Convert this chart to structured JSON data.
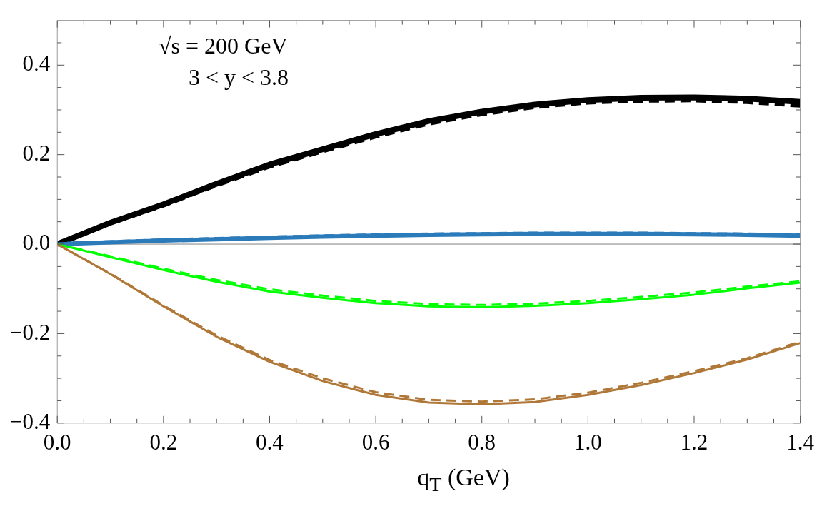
{
  "chart_data": {
    "type": "line",
    "xlabel": "q$_{T}$ (GeV)",
    "x": [
      0,
      0.1,
      0.2,
      0.3,
      0.4,
      0.5,
      0.6,
      0.7,
      0.8,
      0.9,
      1.0,
      1.1,
      1.2,
      1.3,
      1.4
    ],
    "series": [
      {
        "color": "#000000",
        "line_style": "solid",
        "values": [
          0,
          0.048,
          0.089,
          0.135,
          0.178,
          0.212,
          0.246,
          0.275,
          0.296,
          0.312,
          0.322,
          0.327,
          0.328,
          0.325,
          0.318
        ]
      },
      {
        "color": "#2b7bba",
        "line_style": "solid",
        "values": [
          0,
          0.004,
          0.008,
          0.011,
          0.014,
          0.017,
          0.019,
          0.021,
          0.022,
          0.023,
          0.023,
          0.023,
          0.022,
          0.021,
          0.019
        ]
      },
      {
        "color": "#00ff00",
        "line_style": "solid",
        "values": [
          0,
          -0.029,
          -0.058,
          -0.084,
          -0.106,
          -0.12,
          -0.132,
          -0.139,
          -0.141,
          -0.138,
          -0.132,
          -0.123,
          -0.113,
          -0.099,
          -0.086
        ]
      },
      {
        "color": "#b07838",
        "line_style": "solid",
        "values": [
          0,
          -0.067,
          -0.139,
          -0.207,
          -0.263,
          -0.306,
          -0.337,
          -0.354,
          -0.358,
          -0.353,
          -0.337,
          -0.315,
          -0.288,
          -0.258,
          -0.221
        ]
      },
      {
        "color": "#000000",
        "line_style": "dashed",
        "values": [
          0,
          0.046,
          0.086,
          0.131,
          0.173,
          0.207,
          0.24,
          0.269,
          0.29,
          0.306,
          0.316,
          0.32,
          0.321,
          0.317,
          0.309
        ]
      },
      {
        "color": "#2b7bba",
        "line_style": "dashed",
        "values": [
          0,
          0.005,
          0.009,
          0.012,
          0.015,
          0.018,
          0.02,
          0.022,
          0.023,
          0.024,
          0.024,
          0.024,
          0.023,
          0.022,
          0.02
        ]
      },
      {
        "color": "#00ff00",
        "line_style": "dashed",
        "values": [
          0,
          -0.027,
          -0.055,
          -0.08,
          -0.101,
          -0.115,
          -0.127,
          -0.134,
          -0.136,
          -0.133,
          -0.127,
          -0.118,
          -0.108,
          -0.095,
          -0.083
        ]
      },
      {
        "color": "#b07838",
        "line_style": "dashed",
        "values": [
          0,
          -0.066,
          -0.137,
          -0.204,
          -0.259,
          -0.3,
          -0.331,
          -0.348,
          -0.352,
          -0.347,
          -0.332,
          -0.31,
          -0.284,
          -0.255,
          -0.218
        ]
      }
    ],
    "xlim": [
      0,
      1.4
    ],
    "xticks": [
      {
        "value": 0,
        "label": "0.0"
      },
      {
        "value": 0.05,
        "label": null
      },
      0.2,
      {
        "value": 0.1,
        "label": null
      },
      {
        "value": 0.15,
        "label": null
      },
      {
        "value": 0.25,
        "label": null
      },
      {
        "value": 0.3,
        "label": null
      },
      {
        "value": 0.35,
        "label": null
      },
      0.4,
      {
        "value": 0.45,
        "label": null
      },
      {
        "value": 0.5,
        "label": null
      },
      {
        "value": 0.55,
        "label": null
      },
      0.6,
      {
        "value": 0.65,
        "label": null
      },
      {
        "value": 0.7,
        "label": null
      },
      {
        "value": 0.75,
        "label": null
      },
      0.8,
      {
        "value": 0.85,
        "label": null
      },
      {
        "value": 0.9,
        "label": null
      },
      {
        "value": 0.95,
        "label": null
      },
      {
        "value": 1,
        "label": "1.0"
      },
      {
        "value": 1.05,
        "label": null
      },
      {
        "value": 1.1,
        "label": null
      },
      {
        "value": 1.15,
        "label": null
      },
      1.2,
      {
        "value": 1.25,
        "label": null
      },
      {
        "value": 1.3,
        "label": null
      },
      {
        "value": 1.35,
        "label": null
      },
      1.4
    ],
    "ylim": [
      -0.4,
      0.5
    ],
    "yticks": [
      {
        "value": -0.4,
        "label": "−0.4"
      },
      {
        "value": -0.35,
        "label": null
      },
      {
        "value": -0.3,
        "label": null
      },
      {
        "value": -0.25,
        "label": null
      },
      {
        "value": -0.2,
        "label": "−0.2"
      },
      {
        "value": -0.15,
        "label": null
      },
      {
        "value": -0.1,
        "label": null
      },
      {
        "value": -0.05,
        "label": null
      },
      {
        "value": 0,
        "label": "0.0"
      },
      {
        "value": 0.05,
        "label": null
      },
      {
        "value": 0.1,
        "label": null
      },
      {
        "value": 0.15,
        "label": null
      },
      0.2,
      {
        "value": 0.25,
        "label": null
      },
      {
        "value": 0.3,
        "label": null
      },
      {
        "value": 0.35,
        "label": null
      },
      0.4,
      {
        "value": 0.45,
        "label": null
      }
    ],
    "ref_lines": [
      {
        "axis": "y",
        "value": 0,
        "color": "#808080"
      }
    ],
    "annotations": [
      "√s = 200 GeV",
      "3 < y < 3.8"
    ],
    "grid": false,
    "legend": false,
    "marker": "none"
  }
}
